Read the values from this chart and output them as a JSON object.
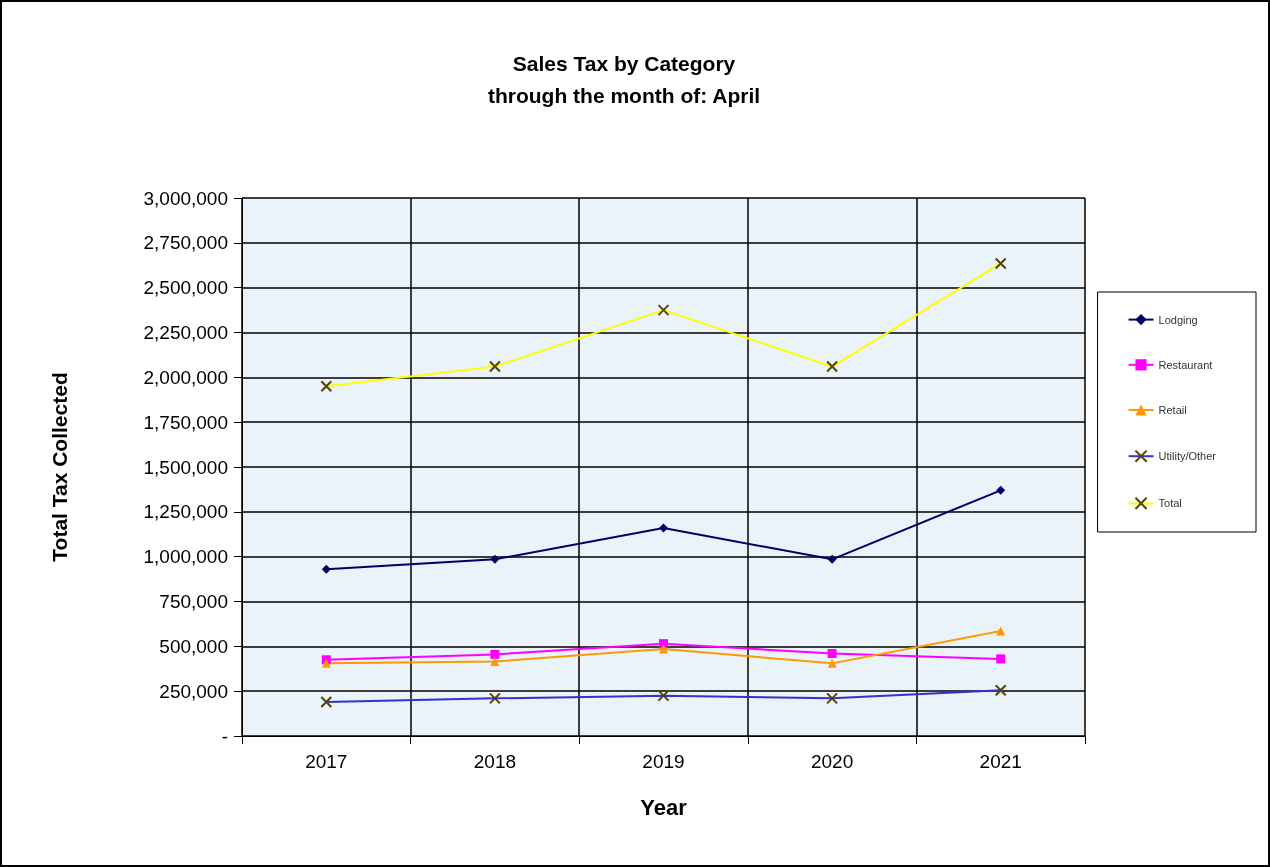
{
  "chart_data": {
    "type": "line",
    "title": "Sales Tax by Category\nthrough the month of: April",
    "xlabel": "Year",
    "ylabel": "Total Tax Collected",
    "categories": [
      "2017",
      "2018",
      "2019",
      "2020",
      "2021"
    ],
    "series": [
      {
        "name": "Lodging",
        "color": "#000066",
        "marker": "diamond",
        "values": [
          930000,
          985000,
          1160000,
          985000,
          1370000
        ]
      },
      {
        "name": "Restaurant",
        "color": "#ff00ff",
        "marker": "square",
        "values": [
          425000,
          455000,
          515000,
          460000,
          430000
        ]
      },
      {
        "name": "Retail",
        "color": "#ff9900",
        "marker": "triangle",
        "values": [
          405000,
          415000,
          485000,
          405000,
          585000
        ]
      },
      {
        "name": "Utility/Other",
        "color": "#3333cc",
        "marker": "cross",
        "values": [
          190000,
          210000,
          225000,
          210000,
          255000
        ]
      },
      {
        "name": "Total",
        "color": "#ffff00",
        "marker": "cross",
        "values": [
          1950000,
          2060000,
          2375000,
          2060000,
          2635000
        ]
      }
    ],
    "ylim": [
      0,
      3000000
    ],
    "yticks": [
      {
        "value": 0,
        "label": "-"
      },
      {
        "value": 250000,
        "label": "250,000"
      },
      {
        "value": 500000,
        "label": "500,000"
      },
      {
        "value": 750000,
        "label": "750,000"
      },
      {
        "value": 1000000,
        "label": "1,000,000"
      },
      {
        "value": 1250000,
        "label": "1,250,000"
      },
      {
        "value": 1500000,
        "label": "1,500,000"
      },
      {
        "value": 1750000,
        "label": "1,750,000"
      },
      {
        "value": 2000000,
        "label": "2,000,000"
      },
      {
        "value": 2250000,
        "label": "2,250,000"
      },
      {
        "value": 2500000,
        "label": "2,500,000"
      },
      {
        "value": 2750000,
        "label": "2,750,000"
      },
      {
        "value": 3000000,
        "label": "3,000,000"
      }
    ],
    "grid": true,
    "legend": "right"
  }
}
